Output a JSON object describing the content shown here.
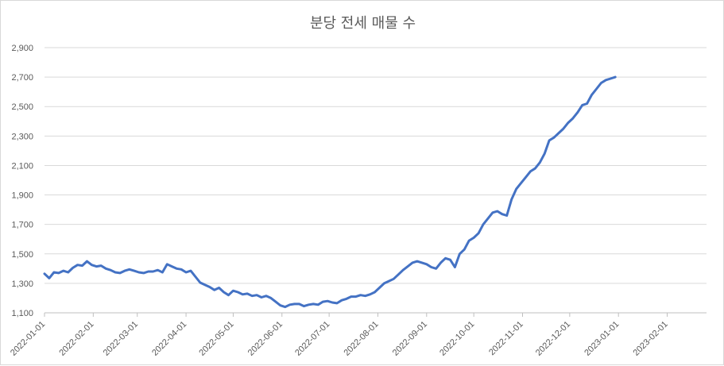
{
  "chart_data": {
    "type": "line",
    "title": "분당 전세 매물 수",
    "xlabel": "",
    "ylabel": "",
    "ylim": [
      1100,
      2900
    ],
    "y_ticks": [
      "1,100",
      "1,300",
      "1,500",
      "1,700",
      "1,900",
      "2,100",
      "2,300",
      "2,500",
      "2,700",
      "2,900"
    ],
    "x_range": [
      "2022-01-01",
      "2023-02-26"
    ],
    "x_ticks": [
      "2022-01-01",
      "2022-02-01",
      "2022-03-01",
      "2022-04-01",
      "2022-05-01",
      "2022-06-01",
      "2022-07-01",
      "2022-08-01",
      "2022-09-01",
      "2022-10-01",
      "2022-11-01",
      "2022-12-01",
      "2023-01-01",
      "2023-02-01"
    ],
    "grid": true,
    "legend": "none",
    "series_color": "#4472C4",
    "series": [
      {
        "points": [
          [
            "2022-01-01",
            1365
          ],
          [
            "2022-01-04",
            1335
          ],
          [
            "2022-01-07",
            1375
          ],
          [
            "2022-01-10",
            1370
          ],
          [
            "2022-01-13",
            1385
          ],
          [
            "2022-01-16",
            1375
          ],
          [
            "2022-01-19",
            1405
          ],
          [
            "2022-01-22",
            1425
          ],
          [
            "2022-01-25",
            1420
          ],
          [
            "2022-01-28",
            1450
          ],
          [
            "2022-01-31",
            1425
          ],
          [
            "2022-02-03",
            1415
          ],
          [
            "2022-02-06",
            1420
          ],
          [
            "2022-02-09",
            1400
          ],
          [
            "2022-02-12",
            1390
          ],
          [
            "2022-02-15",
            1375
          ],
          [
            "2022-02-18",
            1370
          ],
          [
            "2022-02-21",
            1385
          ],
          [
            "2022-02-24",
            1395
          ],
          [
            "2022-02-27",
            1385
          ],
          [
            "2022-03-02",
            1375
          ],
          [
            "2022-03-05",
            1370
          ],
          [
            "2022-03-08",
            1380
          ],
          [
            "2022-03-11",
            1380
          ],
          [
            "2022-03-14",
            1390
          ],
          [
            "2022-03-17",
            1375
          ],
          [
            "2022-03-20",
            1430
          ],
          [
            "2022-03-23",
            1415
          ],
          [
            "2022-03-26",
            1400
          ],
          [
            "2022-03-29",
            1395
          ],
          [
            "2022-04-01",
            1375
          ],
          [
            "2022-04-04",
            1385
          ],
          [
            "2022-04-07",
            1345
          ],
          [
            "2022-04-10",
            1305
          ],
          [
            "2022-04-13",
            1290
          ],
          [
            "2022-04-16",
            1275
          ],
          [
            "2022-04-19",
            1255
          ],
          [
            "2022-04-22",
            1270
          ],
          [
            "2022-04-25",
            1240
          ],
          [
            "2022-04-28",
            1220
          ],
          [
            "2022-05-01",
            1250
          ],
          [
            "2022-05-04",
            1240
          ],
          [
            "2022-05-07",
            1225
          ],
          [
            "2022-05-10",
            1230
          ],
          [
            "2022-05-13",
            1215
          ],
          [
            "2022-05-16",
            1220
          ],
          [
            "2022-05-19",
            1205
          ],
          [
            "2022-05-22",
            1215
          ],
          [
            "2022-05-25",
            1200
          ],
          [
            "2022-05-28",
            1175
          ],
          [
            "2022-05-31",
            1150
          ],
          [
            "2022-06-03",
            1140
          ],
          [
            "2022-06-06",
            1155
          ],
          [
            "2022-06-09",
            1160
          ],
          [
            "2022-06-12",
            1160
          ],
          [
            "2022-06-15",
            1145
          ],
          [
            "2022-06-18",
            1155
          ],
          [
            "2022-06-21",
            1160
          ],
          [
            "2022-06-24",
            1155
          ],
          [
            "2022-06-27",
            1175
          ],
          [
            "2022-06-30",
            1180
          ],
          [
            "2022-07-03",
            1170
          ],
          [
            "2022-07-06",
            1165
          ],
          [
            "2022-07-09",
            1185
          ],
          [
            "2022-07-12",
            1195
          ],
          [
            "2022-07-15",
            1210
          ],
          [
            "2022-07-18",
            1210
          ],
          [
            "2022-07-21",
            1220
          ],
          [
            "2022-07-24",
            1215
          ],
          [
            "2022-07-27",
            1225
          ],
          [
            "2022-07-30",
            1240
          ],
          [
            "2022-08-02",
            1270
          ],
          [
            "2022-08-05",
            1300
          ],
          [
            "2022-08-08",
            1315
          ],
          [
            "2022-08-11",
            1330
          ],
          [
            "2022-08-14",
            1360
          ],
          [
            "2022-08-17",
            1390
          ],
          [
            "2022-08-20",
            1415
          ],
          [
            "2022-08-23",
            1440
          ],
          [
            "2022-08-26",
            1450
          ],
          [
            "2022-08-29",
            1440
          ],
          [
            "2022-09-01",
            1430
          ],
          [
            "2022-09-04",
            1410
          ],
          [
            "2022-09-07",
            1400
          ],
          [
            "2022-09-10",
            1440
          ],
          [
            "2022-09-13",
            1470
          ],
          [
            "2022-09-16",
            1460
          ],
          [
            "2022-09-19",
            1410
          ],
          [
            "2022-09-22",
            1500
          ],
          [
            "2022-09-25",
            1530
          ],
          [
            "2022-09-28",
            1590
          ],
          [
            "2022-10-01",
            1610
          ],
          [
            "2022-10-04",
            1640
          ],
          [
            "2022-10-07",
            1700
          ],
          [
            "2022-10-10",
            1740
          ],
          [
            "2022-10-13",
            1780
          ],
          [
            "2022-10-16",
            1790
          ],
          [
            "2022-10-19",
            1770
          ],
          [
            "2022-10-22",
            1760
          ],
          [
            "2022-10-25",
            1870
          ],
          [
            "2022-10-28",
            1940
          ],
          [
            "2022-10-31",
            1980
          ],
          [
            "2022-11-03",
            2020
          ],
          [
            "2022-11-06",
            2060
          ],
          [
            "2022-11-09",
            2080
          ],
          [
            "2022-11-12",
            2120
          ],
          [
            "2022-11-15",
            2180
          ],
          [
            "2022-11-18",
            2270
          ],
          [
            "2022-11-21",
            2290
          ],
          [
            "2022-11-24",
            2320
          ],
          [
            "2022-11-27",
            2350
          ],
          [
            "2022-11-30",
            2390
          ],
          [
            "2022-12-03",
            2420
          ],
          [
            "2022-12-06",
            2460
          ],
          [
            "2022-12-09",
            2510
          ],
          [
            "2022-12-12",
            2520
          ],
          [
            "2022-12-15",
            2580
          ],
          [
            "2022-12-18",
            2620
          ],
          [
            "2022-12-21",
            2660
          ],
          [
            "2022-12-24",
            2680
          ],
          [
            "2022-12-27",
            2690
          ],
          [
            "2022-12-30",
            2700
          ]
        ]
      }
    ]
  }
}
